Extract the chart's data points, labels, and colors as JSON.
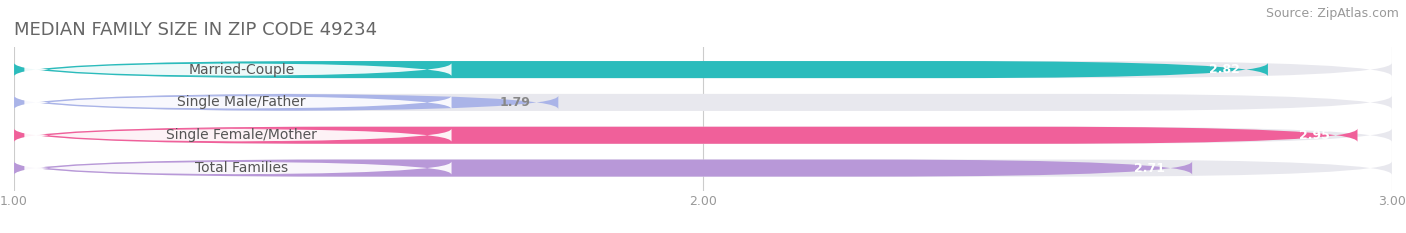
{
  "title": "MEDIAN FAMILY SIZE IN ZIP CODE 49234",
  "source": "Source: ZipAtlas.com",
  "categories": [
    "Married-Couple",
    "Single Male/Father",
    "Single Female/Mother",
    "Total Families"
  ],
  "values": [
    2.82,
    1.79,
    2.95,
    2.71
  ],
  "bar_colors": [
    "#2bbcbc",
    "#aab4e8",
    "#f0609a",
    "#b898d8"
  ],
  "bg_bar_color": "#e8e8ee",
  "value_label_colors": [
    "#ffffff",
    "#888888",
    "#ffffff",
    "#ffffff"
  ],
  "xmin": 1.0,
  "xmax": 3.0,
  "xticks": [
    1.0,
    2.0,
    3.0
  ],
  "xtick_labels": [
    "1.00",
    "2.00",
    "3.00"
  ],
  "background_color": "#ffffff",
  "bar_height": 0.52,
  "bar_gap": 1.0,
  "title_fontsize": 13,
  "source_fontsize": 9,
  "label_fontsize": 10,
  "value_fontsize": 9,
  "tick_fontsize": 9
}
